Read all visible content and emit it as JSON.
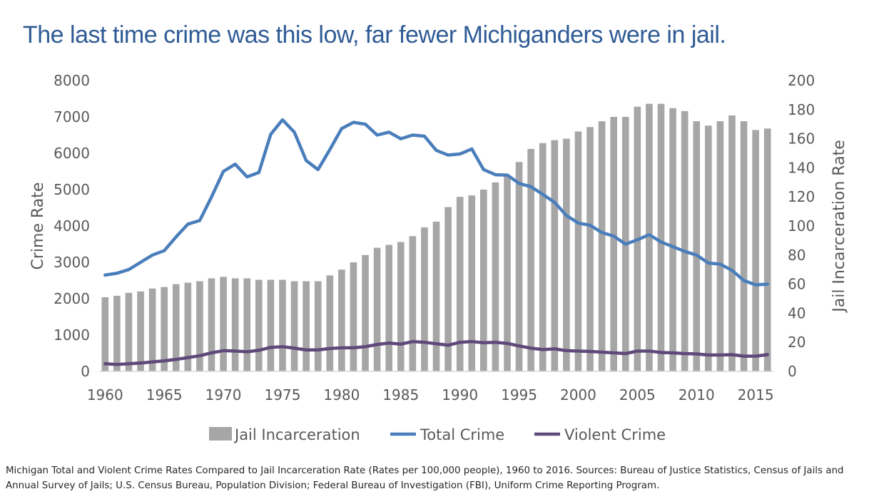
{
  "chart_data": {
    "type": "bar+line",
    "title": "The last time crime was this low, far fewer Michiganders were in jail.",
    "caption": "Michigan Total and Violent Crime Rates Compared to Jail Incarceration Rate (Rates per 100,000 people), 1960 to 2016. Sources: Bureau of Justice Statistics, Census of Jails and Annual Survey of Jails; U.S. Census Bureau, Population Division; Federal Bureau of Investigation (FBI), Uniform Crime Reporting Program.",
    "ylabel_left": "Crime Rate",
    "ylabel_right": "Jail Incarceration Rate",
    "ylim_left": [
      0,
      8000
    ],
    "ylim_right": [
      0,
      200
    ],
    "yticks_left": [
      "0",
      "1000",
      "2000",
      "3000",
      "4000",
      "5000",
      "6000",
      "7000",
      "8000"
    ],
    "yticks_right": [
      "0",
      "20",
      "40",
      "60",
      "80",
      "100",
      "120",
      "140",
      "160",
      "180",
      "200"
    ],
    "xticks": [
      "1960",
      "1965",
      "1970",
      "1975",
      "1980",
      "1985",
      "1990",
      "1995",
      "2000",
      "2005",
      "2010",
      "2015"
    ],
    "legend_position": "bottom",
    "grid": false,
    "x": [
      1960,
      1961,
      1962,
      1963,
      1964,
      1965,
      1966,
      1967,
      1968,
      1969,
      1970,
      1971,
      1972,
      1973,
      1974,
      1975,
      1976,
      1977,
      1978,
      1979,
      1980,
      1981,
      1982,
      1983,
      1984,
      1985,
      1986,
      1987,
      1988,
      1989,
      1990,
      1991,
      1992,
      1993,
      1994,
      1995,
      1996,
      1997,
      1998,
      1999,
      2000,
      2001,
      2002,
      2003,
      2004,
      2005,
      2006,
      2007,
      2008,
      2009,
      2010,
      2011,
      2012,
      2013,
      2014,
      2015,
      2016
    ],
    "series": [
      {
        "name": "Jail Incarceration",
        "kind": "bar",
        "axis": "right",
        "color": "#a6a6a6",
        "values": [
          51,
          52,
          54,
          55,
          57,
          58,
          60,
          61,
          62,
          64,
          65,
          64,
          64,
          63,
          63,
          63,
          62,
          62,
          62,
          66,
          70,
          75,
          80,
          85,
          87,
          89,
          93,
          99,
          103,
          113,
          120,
          121,
          125,
          130,
          135,
          144,
          153,
          157,
          159,
          160,
          165,
          168,
          172,
          175,
          175,
          182,
          184,
          184,
          181,
          179,
          172,
          169,
          172,
          176,
          172,
          166,
          167
        ]
      },
      {
        "name": "Total Crime",
        "kind": "line",
        "axis": "left",
        "color": "#4a7ebb",
        "values": [
          2650,
          2700,
          2800,
          3000,
          3200,
          3320,
          3700,
          4050,
          4150,
          4800,
          5500,
          5700,
          5350,
          5470,
          6520,
          6920,
          6580,
          5800,
          5550,
          6100,
          6680,
          6850,
          6800,
          6500,
          6580,
          6400,
          6500,
          6470,
          6080,
          5950,
          5980,
          6120,
          5550,
          5410,
          5400,
          5170,
          5080,
          4870,
          4650,
          4290,
          4080,
          4020,
          3820,
          3720,
          3500,
          3620,
          3760,
          3560,
          3430,
          3300,
          3200,
          2980,
          2950,
          2780,
          2500,
          2380,
          2400
        ]
      },
      {
        "name": "Violent Crime",
        "kind": "line",
        "axis": "left",
        "color": "#5f497a",
        "values": [
          210,
          190,
          210,
          230,
          260,
          290,
          330,
          380,
          430,
          510,
          570,
          560,
          540,
          580,
          660,
          680,
          640,
          590,
          590,
          630,
          650,
          650,
          680,
          740,
          780,
          750,
          820,
          800,
          760,
          720,
          800,
          820,
          790,
          800,
          770,
          700,
          640,
          600,
          620,
          570,
          560,
          550,
          530,
          510,
          490,
          560,
          560,
          520,
          510,
          490,
          480,
          450,
          450,
          460,
          420,
          420,
          460
        ]
      }
    ]
  }
}
